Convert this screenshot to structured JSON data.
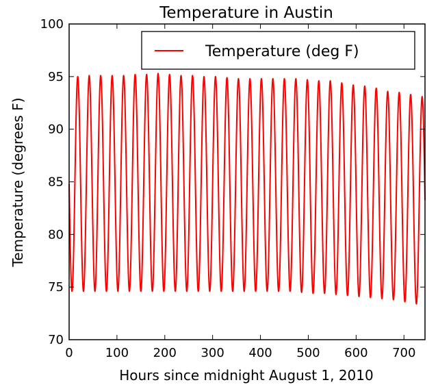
{
  "chart_data": {
    "type": "line",
    "title": "Temperature in Austin",
    "xlabel": "Hours since midnight August 1, 2010",
    "ylabel": "Temperature (degrees F)",
    "xlim": [
      0,
      744
    ],
    "ylim": [
      70,
      100
    ],
    "xticks": [
      "0",
      "100",
      "200",
      "300",
      "400",
      "500",
      "600",
      "700"
    ],
    "yticks": [
      "70",
      "75",
      "80",
      "85",
      "90",
      "95",
      "100"
    ],
    "grid": false,
    "legend": {
      "position": "top-right",
      "entries": [
        "Temperature (deg F)"
      ]
    },
    "series_color": "#ff0000",
    "series": [
      {
        "name": "Temperature (deg F)",
        "period_hours": 24,
        "daily_max": [
          95.0,
          95.1,
          95.1,
          95.1,
          95.1,
          95.2,
          95.2,
          95.3,
          95.2,
          95.1,
          95.1,
          95.0,
          95.0,
          94.9,
          94.8,
          94.8,
          94.8,
          94.8,
          94.8,
          94.8,
          94.7,
          94.6,
          94.6,
          94.4,
          94.2,
          94.1,
          93.9,
          93.6,
          93.5,
          93.3,
          93.1
        ],
        "daily_min": [
          74.6,
          74.6,
          74.6,
          74.6,
          74.6,
          74.6,
          74.6,
          74.6,
          74.6,
          74.6,
          74.6,
          74.6,
          74.6,
          74.6,
          74.6,
          74.6,
          74.6,
          74.6,
          74.6,
          74.6,
          74.5,
          74.4,
          74.4,
          74.3,
          74.2,
          74.1,
          74.0,
          73.9,
          73.8,
          73.6,
          73.4
        ]
      }
    ]
  }
}
